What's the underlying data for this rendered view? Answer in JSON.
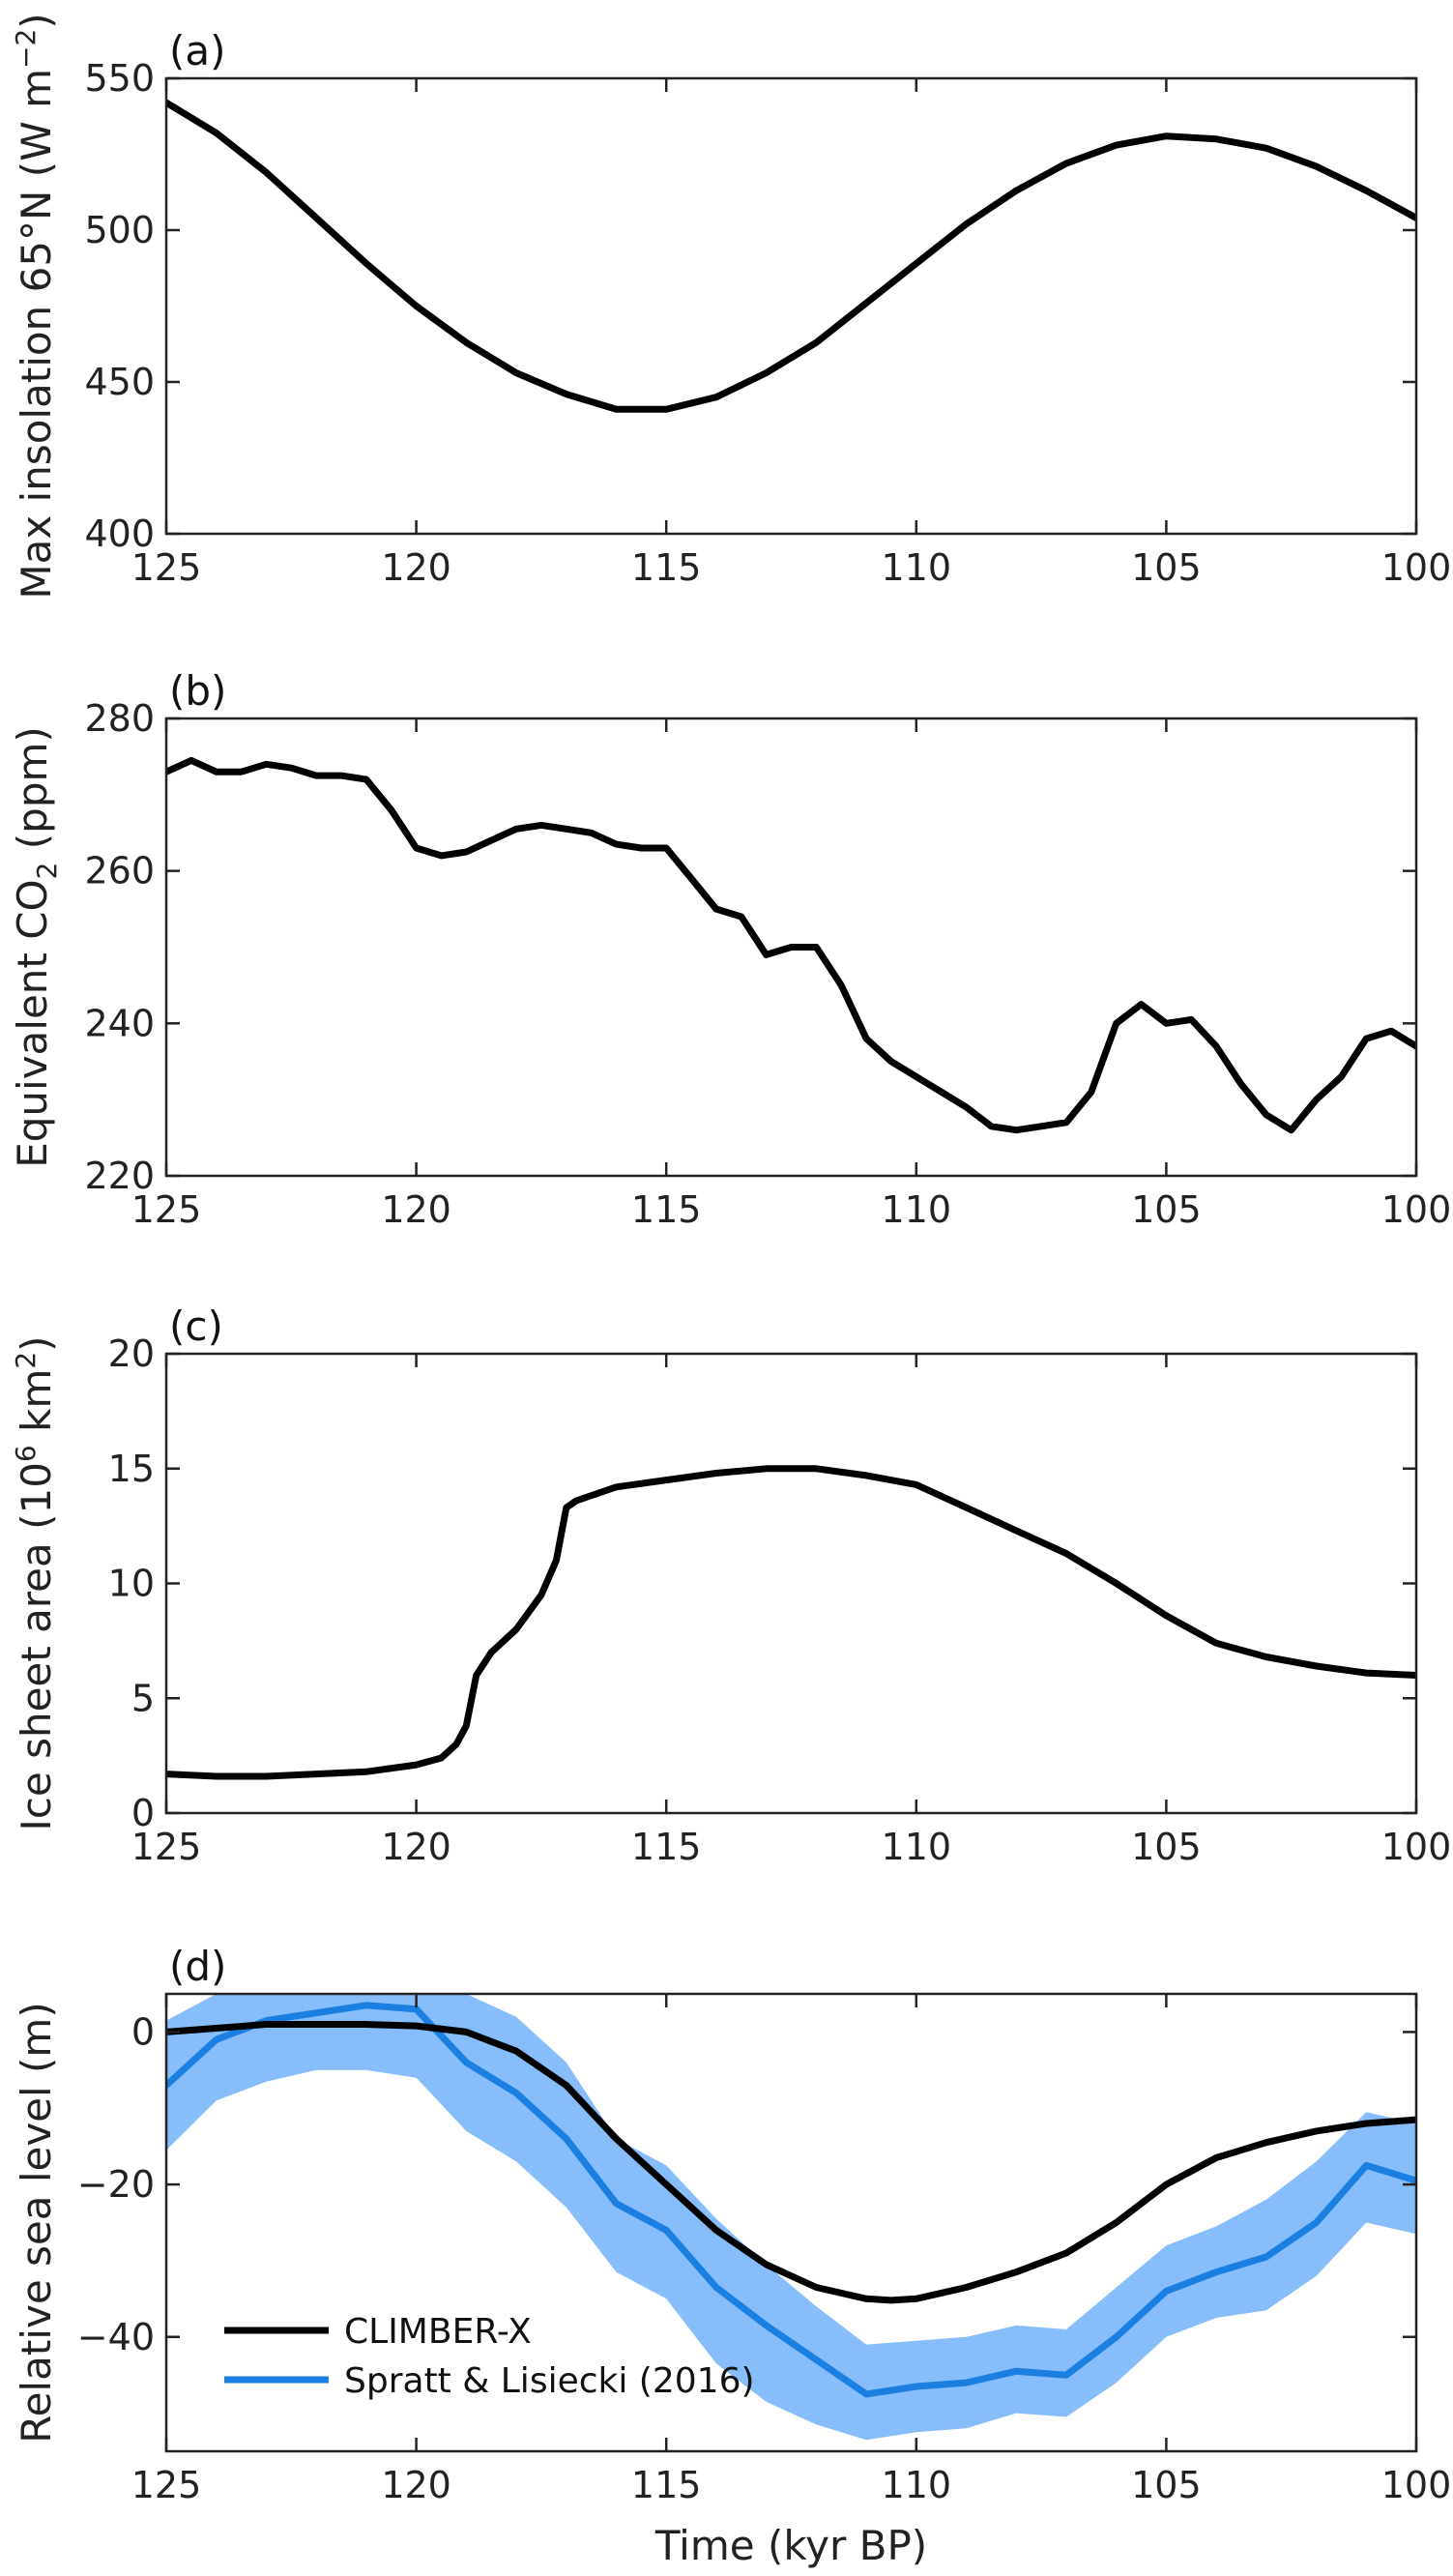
{
  "chart_data": [
    {
      "type": "line",
      "panel_label": "(a)",
      "ylabel": "Max insolation 65°N (W m",
      "ylabel_sup": "−2",
      "ylabel_tail": ")",
      "xlim": [
        125,
        100
      ],
      "ylim": [
        400,
        550
      ],
      "xticks": [
        125,
        120,
        115,
        110,
        105,
        100
      ],
      "yticks": [
        400,
        450,
        500,
        550
      ],
      "color_line": "#000000",
      "series": [
        {
          "x": [
            125,
            124,
            123,
            122,
            121,
            120,
            119,
            118,
            117,
            116,
            115,
            114,
            113,
            112,
            111,
            110,
            109,
            108,
            107,
            106,
            105,
            104,
            103,
            102,
            101,
            100
          ],
          "y": [
            542,
            532,
            519,
            504,
            489,
            475,
            463,
            453,
            446,
            441,
            441,
            445,
            453,
            463,
            476,
            489,
            502,
            513,
            522,
            528,
            531,
            530,
            527,
            521,
            513,
            504
          ]
        }
      ]
    },
    {
      "type": "line",
      "panel_label": "(b)",
      "ylabel": "Equivalent CO",
      "ylabel_sub": "2",
      "ylabel_tail": " (ppm)",
      "xlim": [
        125,
        100
      ],
      "ylim": [
        220,
        280
      ],
      "xticks": [
        125,
        120,
        115,
        110,
        105,
        100
      ],
      "yticks": [
        220,
        240,
        260,
        280
      ],
      "color_line": "#000000",
      "series": [
        {
          "x": [
            125,
            124.5,
            124,
            123.5,
            123,
            122.5,
            122,
            121.5,
            121,
            120.5,
            120,
            119.5,
            119,
            118.5,
            118,
            117.5,
            117,
            116.5,
            116,
            115.5,
            115,
            114.5,
            114,
            113.5,
            113,
            112.5,
            112,
            111.5,
            111,
            110.5,
            110,
            109.5,
            109,
            108.5,
            108,
            107.5,
            107,
            106.5,
            106,
            105.5,
            105,
            104.5,
            104,
            103.5,
            103,
            102.5,
            102,
            101.5,
            101,
            100.5,
            100
          ],
          "y": [
            273,
            274.5,
            273,
            273,
            274,
            273.5,
            272.5,
            272.5,
            272,
            268,
            263,
            262,
            262.5,
            264,
            265.5,
            266,
            265.5,
            265,
            263.5,
            263,
            263,
            259,
            255,
            254,
            249,
            250,
            250,
            245,
            238,
            235,
            233,
            231,
            229,
            226.5,
            226,
            226.5,
            227,
            231,
            240,
            242.5,
            240,
            240.5,
            237,
            232,
            228,
            226,
            230,
            233,
            238,
            239,
            237
          ]
        }
      ]
    },
    {
      "type": "line",
      "panel_label": "(c)",
      "ylabel": "Ice sheet area (10",
      "ylabel_sup": "6",
      "ylabel_mid": " km",
      "ylabel_sup2": "2",
      "ylabel_tail": ")",
      "xlim": [
        125,
        100
      ],
      "ylim": [
        0,
        20
      ],
      "xticks": [
        125,
        120,
        115,
        110,
        105,
        100
      ],
      "yticks": [
        0,
        5,
        10,
        15,
        20
      ],
      "color_line": "#000000",
      "series": [
        {
          "x": [
            125,
            124,
            123,
            122,
            121,
            120,
            119.5,
            119.2,
            119,
            118.8,
            118.5,
            118,
            117.5,
            117.2,
            117,
            116.8,
            116,
            115,
            114,
            113,
            112,
            111,
            110,
            109,
            108,
            107,
            106,
            105,
            104,
            103,
            102,
            101,
            100
          ],
          "y": [
            1.7,
            1.6,
            1.6,
            1.7,
            1.8,
            2.1,
            2.4,
            3.0,
            3.8,
            6.0,
            7.0,
            8.0,
            9.5,
            11.0,
            13.3,
            13.6,
            14.2,
            14.5,
            14.8,
            15.0,
            15.0,
            14.7,
            14.3,
            13.3,
            12.3,
            11.3,
            10.0,
            8.6,
            7.4,
            6.8,
            6.4,
            6.1,
            6.0
          ]
        }
      ]
    },
    {
      "type": "line",
      "panel_label": "(d)",
      "ylabel": "Relative sea level (m)",
      "xlabel": "Time (kyr BP)",
      "xlim": [
        125,
        100
      ],
      "ylim": [
        -55,
        5
      ],
      "xticks": [
        125,
        120,
        115,
        110,
        105,
        100
      ],
      "yticks": [
        -40,
        -20,
        0
      ],
      "legend_position": "bottom-left",
      "series": [
        {
          "name": "CLIMBER-X",
          "color": "#000000",
          "x": [
            125,
            124,
            123,
            122,
            121,
            120,
            119,
            118,
            117,
            116,
            115,
            114,
            113,
            112,
            111,
            110.5,
            110,
            109,
            108,
            107,
            106,
            105,
            104,
            103,
            102,
            101,
            100
          ],
          "y": [
            0,
            0.5,
            1,
            1,
            1,
            0.8,
            0,
            -2.5,
            -7,
            -14,
            -20,
            -26,
            -30.5,
            -33.5,
            -35,
            -35.2,
            -35,
            -33.5,
            -31.5,
            -29,
            -25,
            -20,
            -16.5,
            -14.5,
            -13,
            -12,
            -11.5
          ]
        },
        {
          "name": "Spratt & Lisiecki (2016)",
          "color": "#1a7fe0",
          "band_color": "#86bdfa",
          "x": [
            125,
            124,
            123,
            122,
            121,
            120,
            119,
            118,
            117,
            116,
            115,
            114,
            113,
            112,
            111,
            110,
            109,
            108,
            107,
            106,
            105,
            104,
            103,
            102,
            101,
            100
          ],
          "y": [
            -7,
            -1,
            1.5,
            2.5,
            3.5,
            3,
            -4,
            -8,
            -14,
            -22.5,
            -26,
            -33.5,
            -38.5,
            -43,
            -47.5,
            -46.5,
            -46,
            -44.5,
            -45,
            -40,
            -34,
            -31.5,
            -29.5,
            -25,
            -17.5,
            -19.5
          ],
          "lower": [
            -15.5,
            -9,
            -6.5,
            -5,
            -5,
            -6,
            -13,
            -17,
            -23,
            -31.5,
            -35,
            -43.5,
            -48.5,
            -51.5,
            -53.5,
            -52.5,
            -52,
            -50,
            -50.5,
            -46,
            -40,
            -37.5,
            -36.5,
            -32,
            -25,
            -26.5
          ],
          "upper": [
            1.5,
            5,
            5,
            5,
            5,
            5,
            5,
            2,
            -4,
            -14,
            -17.5,
            -24.5,
            -30.5,
            -36,
            -41,
            -40.5,
            -40,
            -38.5,
            -39,
            -33.5,
            -28,
            -25.5,
            -22,
            -17,
            -10.5,
            -12
          ]
        }
      ]
    }
  ]
}
